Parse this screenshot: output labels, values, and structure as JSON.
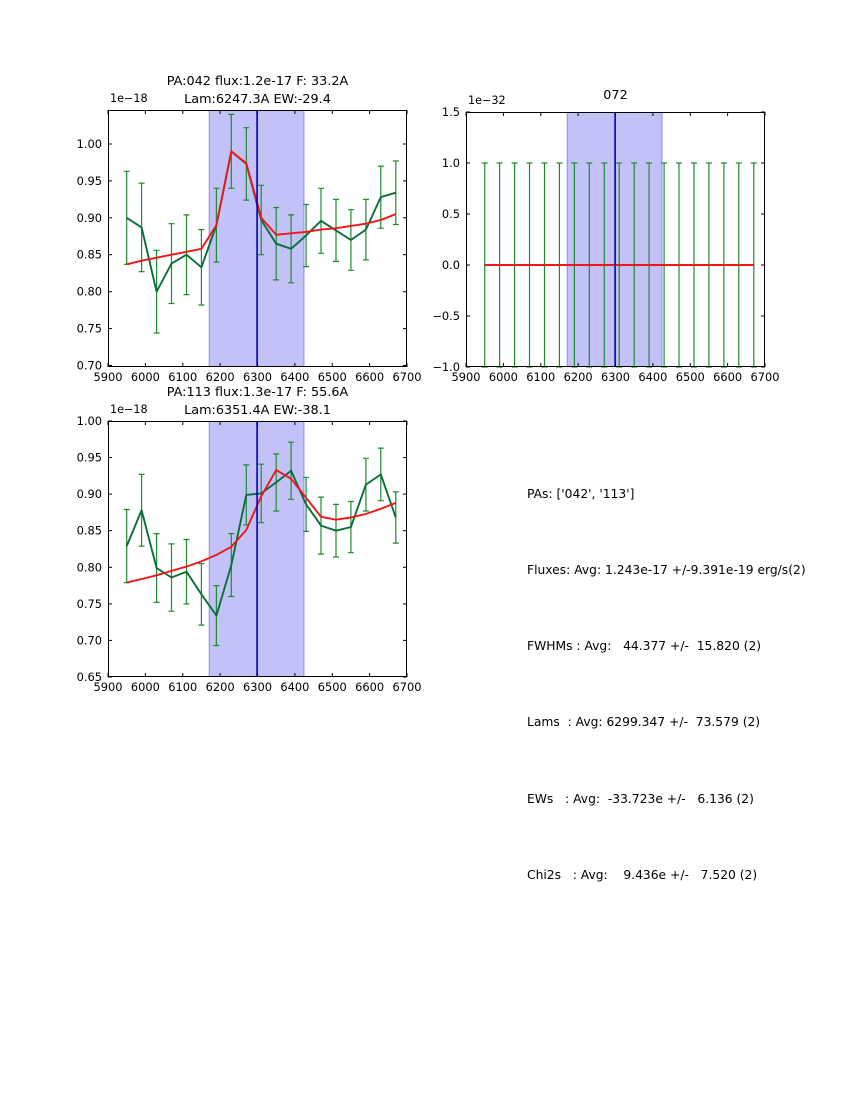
{
  "colors": {
    "background": "#ffffff",
    "axis": "#000000",
    "data_line": "#0b6e39",
    "errorbar": "#1e8b2e",
    "fit_line": "#ef1717",
    "band_fill": "#c2c2f8",
    "band_edge": "#9a9ade",
    "center_line": "#0000bb",
    "text": "#000000"
  },
  "stats": {
    "lines": [
      "PAs: ['042', '113']",
      "Fluxes: Avg: 1.243e-17 +/-9.391e-19 erg/s(2)",
      "FWHMs : Avg:   44.377 +/-  15.820 (2)",
      "Lams  : Avg: 6299.347 +/-  73.579 (2)",
      "EWs   : Avg:  -33.723e +/-   6.136 (2)",
      "Chi2s   : Avg:    9.436e +/-   7.520 (2)"
    ]
  },
  "chart_data": [
    {
      "id": "pa042",
      "type": "line",
      "title_lines": [
        "PA:042 flux:1.2e-17 F: 33.2A",
        "Lam:6247.3A EW:-29.4"
      ],
      "offset_label": "1e−18",
      "xlim": [
        5900,
        6700
      ],
      "ylim": [
        0.698,
        1.046
      ],
      "xticks": [
        5900,
        6000,
        6100,
        6200,
        6300,
        6400,
        6500,
        6600,
        6700
      ],
      "xtick_labels": [
        "5900",
        "6000",
        "6100",
        "6200",
        "6300",
        "6400",
        "6500",
        "6600",
        "6700"
      ],
      "yticks": [
        0.7,
        0.75,
        0.8,
        0.85,
        0.9,
        0.95,
        1.0
      ],
      "ytick_labels": [
        "0.70",
        "0.75",
        "0.80",
        "0.85",
        "0.90",
        "0.95",
        "1.00"
      ],
      "band_x": [
        6171,
        6424
      ],
      "center_x": 6299,
      "x": [
        5950,
        5990,
        6030,
        6070,
        6110,
        6150,
        6190,
        6230,
        6270,
        6310,
        6350,
        6390,
        6430,
        6470,
        6510,
        6550,
        6590,
        6630,
        6670
      ],
      "series": [
        {
          "name": "spectrum",
          "values": [
            0.9,
            0.887,
            0.8,
            0.838,
            0.85,
            0.833,
            0.89,
            0.99,
            0.973,
            0.897,
            0.865,
            0.858,
            0.876,
            0.896,
            0.883,
            0.87,
            0.884,
            0.928,
            0.934
          ],
          "yerr": [
            0.063,
            0.06,
            0.056,
            0.054,
            0.054,
            0.051,
            0.05,
            0.05,
            0.049,
            0.047,
            0.049,
            0.046,
            0.042,
            0.044,
            0.042,
            0.041,
            0.041,
            0.042,
            0.043
          ]
        },
        {
          "name": "gauss_fit",
          "values": [
            0.837,
            0.842,
            0.846,
            0.85,
            0.854,
            0.858,
            0.89,
            0.99,
            0.974,
            0.9,
            0.877,
            0.879,
            0.881,
            0.884,
            0.886,
            0.889,
            0.892,
            0.897,
            0.905
          ]
        }
      ]
    },
    {
      "id": "spec072",
      "type": "line",
      "title_lines": [
        "072"
      ],
      "offset_label": "1e−32",
      "xlim": [
        5900,
        6700
      ],
      "ylim": [
        -1.0,
        1.5
      ],
      "xticks": [
        5900,
        6000,
        6100,
        6200,
        6300,
        6400,
        6500,
        6600,
        6700
      ],
      "xtick_labels": [
        "5900",
        "6000",
        "6100",
        "6200",
        "6300",
        "6400",
        "6500",
        "6600",
        "6700"
      ],
      "yticks": [
        -1.0,
        -0.5,
        0.0,
        0.5,
        1.0,
        1.5
      ],
      "ytick_labels": [
        "−1.0",
        "−0.5",
        "0.0",
        "0.5",
        "1.0",
        "1.5"
      ],
      "band_x": [
        6171,
        6424
      ],
      "center_x": 6299,
      "x": [
        5950,
        5990,
        6030,
        6070,
        6110,
        6150,
        6190,
        6230,
        6270,
        6310,
        6350,
        6390,
        6430,
        6470,
        6510,
        6550,
        6590,
        6630,
        6670
      ],
      "series": [
        {
          "name": "spectrum",
          "values": [
            0,
            0,
            0,
            0,
            0,
            0,
            0,
            0,
            0,
            0,
            0,
            0,
            0,
            0,
            0,
            0,
            0,
            0,
            0
          ],
          "yerr": [
            1,
            1,
            1,
            1,
            1,
            1,
            1,
            1,
            1,
            1,
            1,
            1,
            1,
            1,
            1,
            1,
            1,
            1,
            1
          ]
        },
        {
          "name": "gauss_fit",
          "values": [
            0,
            0,
            0,
            0,
            0,
            0,
            0,
            0,
            0,
            0,
            0,
            0,
            0,
            0,
            0,
            0,
            0,
            0,
            0
          ]
        }
      ]
    },
    {
      "id": "pa113",
      "type": "line",
      "title_lines": [
        "PA:113 flux:1.3e-17 F: 55.6A",
        "Lam:6351.4A EW:-38.1"
      ],
      "offset_label": "1e−18",
      "xlim": [
        5900,
        6700
      ],
      "ylim": [
        0.65,
        1.0
      ],
      "xticks": [
        5900,
        6000,
        6100,
        6200,
        6300,
        6400,
        6500,
        6600,
        6700
      ],
      "xtick_labels": [
        "5900",
        "6000",
        "6100",
        "6200",
        "6300",
        "6400",
        "6500",
        "6600",
        "6700"
      ],
      "yticks": [
        0.65,
        0.7,
        0.75,
        0.8,
        0.85,
        0.9,
        0.95,
        1.0
      ],
      "ytick_labels": [
        "0.65",
        "0.70",
        "0.75",
        "0.80",
        "0.85",
        "0.90",
        "0.95",
        "1.00"
      ],
      "band_x": [
        6171,
        6424
      ],
      "center_x": 6299,
      "x": [
        5950,
        5990,
        6030,
        6070,
        6110,
        6150,
        6190,
        6230,
        6270,
        6310,
        6350,
        6390,
        6430,
        6470,
        6510,
        6550,
        6590,
        6630,
        6670
      ],
      "series": [
        {
          "name": "spectrum",
          "values": [
            0.829,
            0.878,
            0.799,
            0.786,
            0.794,
            0.763,
            0.734,
            0.803,
            0.899,
            0.901,
            0.916,
            0.932,
            0.886,
            0.857,
            0.85,
            0.855,
            0.913,
            0.927,
            0.868
          ],
          "yerr": [
            0.05,
            0.049,
            0.047,
            0.046,
            0.044,
            0.042,
            0.041,
            0.043,
            0.041,
            0.04,
            0.039,
            0.039,
            0.037,
            0.039,
            0.036,
            0.035,
            0.036,
            0.036,
            0.035
          ]
        },
        {
          "name": "gauss_fit",
          "values": [
            0.779,
            0.784,
            0.789,
            0.795,
            0.801,
            0.808,
            0.817,
            0.828,
            0.851,
            0.897,
            0.933,
            0.921,
            0.895,
            0.869,
            0.865,
            0.868,
            0.873,
            0.88,
            0.888
          ]
        }
      ]
    }
  ]
}
